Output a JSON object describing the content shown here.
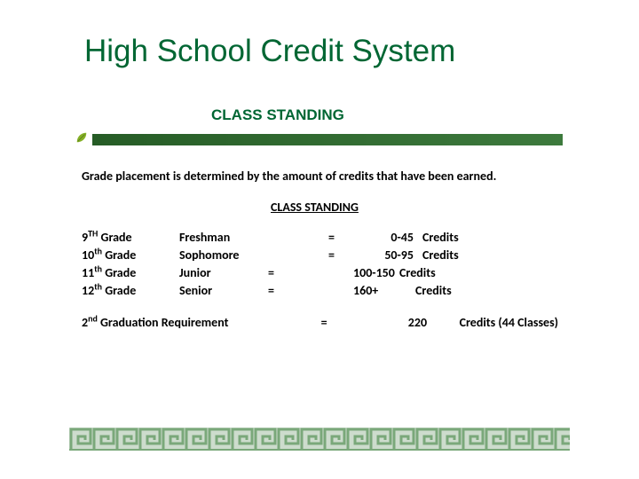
{
  "title": "High School Credit System",
  "subtitle_top": "CLASS STANDING",
  "intro": "Grade placement is determined by the amount of credits that have been earned.",
  "subtitle_mid": "CLASS STANDING",
  "colors": {
    "title": "#006633",
    "bar_start": "#265c26",
    "bar_end": "#3d7a3d",
    "greek": "#7aa87a",
    "greek_bg": "#cddccd",
    "leaf": "#84b026"
  },
  "rows": [
    {
      "grade_num": "9",
      "grade_sup": "TH",
      "grade_after": "  Grade",
      "level": "Freshman",
      "eq1": "",
      "eq2": "=",
      "range": "0-45",
      "cred": "Credits"
    },
    {
      "grade_num": "10",
      "grade_sup": "th",
      "grade_after": " Grade",
      "level": "Sophomore",
      "eq1": "",
      "eq2": "=",
      "range": "50-95",
      "cred": "Credits"
    },
    {
      "grade_num": "11",
      "grade_sup": "th",
      "grade_after": " Grade",
      "level": "Junior",
      "eq1": "=",
      "eq2": "",
      "range": "100-150",
      "cred": "Credits"
    },
    {
      "grade_num": "12",
      "grade_sup": "th",
      "grade_after": " Grade",
      "level": "Senior",
      "eq1": "=",
      "eq2": "",
      "range": "160+",
      "cred": "Credits"
    }
  ],
  "grad": {
    "num": "2",
    "sup": "nd",
    "label_after": "  Graduation Requirement",
    "eq": "=",
    "value": "220",
    "text": "Credits (44 Classes)"
  }
}
